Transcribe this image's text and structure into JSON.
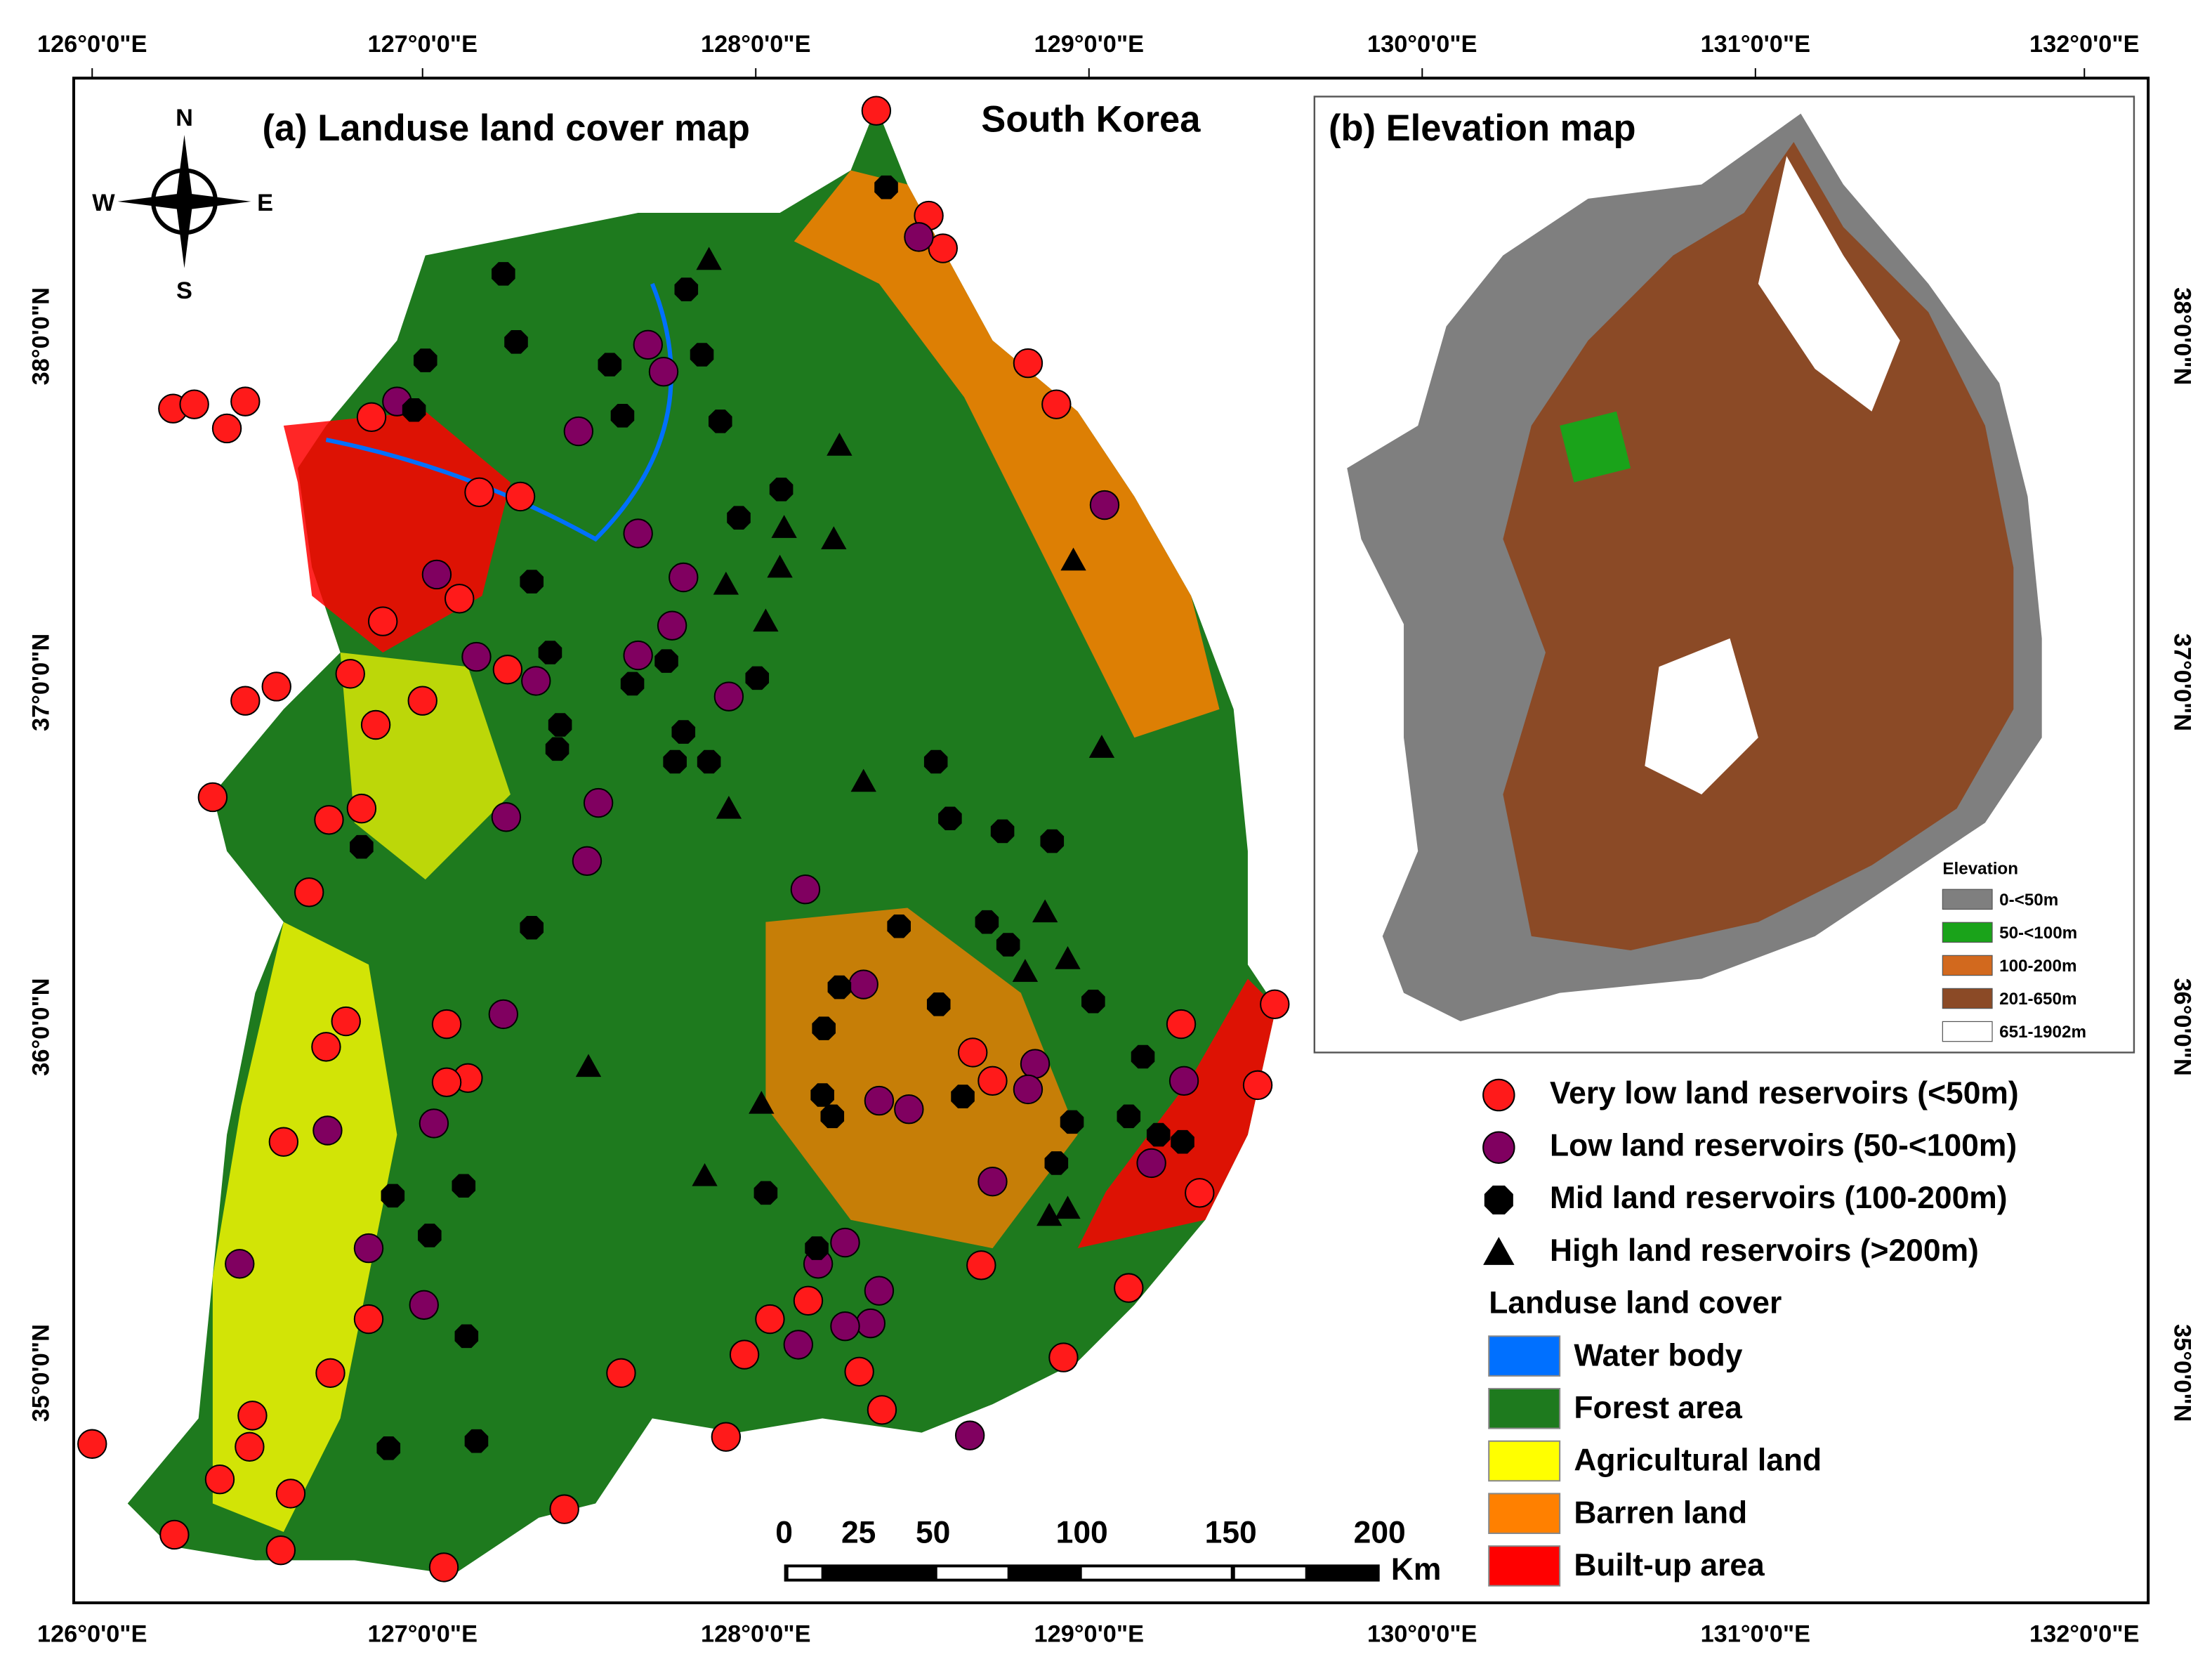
{
  "map_a": {
    "title": "(a) Landuse land cover map",
    "country": "South Korea"
  },
  "map_b": {
    "title": "(b) Elevation map",
    "legend_title": "Elevation",
    "legend": [
      {
        "label": "0-<50m",
        "color": "#7f7f7f"
      },
      {
        "label": "50-<100m",
        "color": "#1aa31a"
      },
      {
        "label": "100-200m",
        "color": "#d2691e"
      },
      {
        "label": "201-650m",
        "color": "#8b4a26"
      },
      {
        "label": "651-1902m",
        "color": "#ffffff"
      }
    ]
  },
  "longitude_labels": [
    "126°0'0\"E",
    "127°0'0\"E",
    "128°0'0\"E",
    "129°0'0\"E",
    "130°0'0\"E",
    "131°0'0\"E",
    "132°0'0\"E"
  ],
  "latitude_labels": [
    "38°0'0\"N",
    "37°0'0\"N",
    "36°0'0\"N",
    "35°0'0\"N"
  ],
  "compass": {
    "north": "N",
    "east": "E",
    "south": "S",
    "west": "W"
  },
  "reservoir_legend": [
    {
      "label": "Very low land reservoirs (<50m)",
      "color": "#ff1a1a"
    },
    {
      "label": "Low land reservoirs (50-<100m)",
      "color": "#800060"
    },
    {
      "label": "Mid land reservoirs (100-200m)",
      "color": "#000000"
    },
    {
      "label": "High land reservoirs (>200m)",
      "color": "#000000"
    }
  ],
  "landuse_legend": {
    "title": "Landuse land cover",
    "items": [
      {
        "label": "Water body",
        "color": "#0070ff"
      },
      {
        "label": "Forest area",
        "color": "#1e7a1e"
      },
      {
        "label": "Agricultural land",
        "color": "#ffff00"
      },
      {
        "label": "Barren land",
        "color": "#ff8000"
      },
      {
        "label": "Built-up area",
        "color": "#ff0000"
      }
    ]
  },
  "scale_bar": {
    "labels": [
      0,
      25,
      50,
      100,
      150,
      200
    ],
    "unit": "Km"
  }
}
